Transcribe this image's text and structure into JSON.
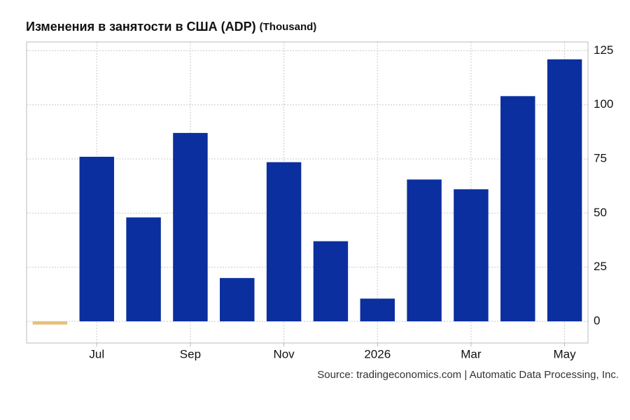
{
  "chart_data": {
    "type": "bar",
    "title": "Изменения в занятости в США (ADP)",
    "unit": "(Thousand)",
    "source": "Source: tradingeconomics.com | Automatic Data Processing, Inc.",
    "categories": [
      null,
      "Jul",
      null,
      "Sep",
      null,
      "Nov",
      null,
      "2026",
      null,
      "Mar",
      null,
      "May"
    ],
    "values": [
      -1.5,
      76,
      48,
      87,
      20,
      73.5,
      37,
      10.5,
      65.5,
      61,
      104,
      121
    ],
    "colors": [
      "#e8c07a",
      "#0b2f9f",
      "#0b2f9f",
      "#0b2f9f",
      "#0b2f9f",
      "#0b2f9f",
      "#0b2f9f",
      "#0b2f9f",
      "#0b2f9f",
      "#0b2f9f",
      "#0b2f9f",
      "#0b2f9f"
    ],
    "ylim": [
      -10,
      129
    ],
    "yticks": [
      0,
      25,
      50,
      75,
      100,
      125
    ],
    "grid": true
  }
}
